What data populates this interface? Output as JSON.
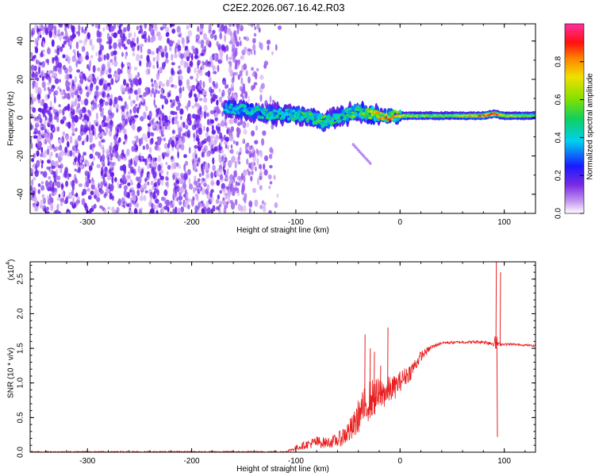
{
  "title": "C2E2.2026.067.16.42.R03",
  "colors": {
    "snr_line": "#e82020",
    "axis": "#000000",
    "noise_dark": "#6a1ee8",
    "noise_light": "#cfa8f4"
  },
  "chart_data": [
    {
      "type": "heatmap",
      "name": "spectrogram",
      "xlabel": "Height of straight line (km)",
      "ylabel": "Frequency (Hz)",
      "xlim": [
        -355,
        130
      ],
      "ylim": [
        -50,
        49
      ],
      "xticks": [
        -300,
        -200,
        -100,
        0,
        100
      ],
      "xtick_labels": [
        "-300",
        "-200",
        "-100",
        "0",
        "100"
      ],
      "yticks": [
        -40,
        -20,
        0,
        20,
        40
      ],
      "ytick_labels": [
        "-40",
        "-20",
        "0",
        "20",
        "40"
      ],
      "noise_region_x": [
        -355,
        -125
      ],
      "signal_band": {
        "x": [
          -168,
          -150,
          -130,
          -110,
          -95,
          -80,
          -70,
          -60,
          -50,
          -40,
          -30,
          -20,
          -10,
          0,
          20,
          50,
          80,
          90,
          100,
          130
        ],
        "center": [
          5,
          4,
          2,
          2,
          1,
          -1,
          -2,
          0,
          2,
          3,
          2,
          1,
          1,
          1,
          1,
          1,
          1,
          2,
          1,
          1
        ],
        "amplitude": [
          0.35,
          0.4,
          0.45,
          0.4,
          0.45,
          0.5,
          0.5,
          0.45,
          0.5,
          0.55,
          0.6,
          0.8,
          0.85,
          0.75,
          0.6,
          0.6,
          0.9,
          0.95,
          0.7,
          0.55
        ]
      },
      "colorbar": {
        "label": "Normalized spectral amplitude",
        "range": [
          0,
          1
        ],
        "ticks": [
          0.0,
          0.2,
          0.4,
          0.6,
          0.8
        ],
        "tick_labels": [
          "0.0",
          "0.2",
          "0.4",
          "0.6",
          "0.8"
        ]
      }
    },
    {
      "type": "line",
      "name": "snr",
      "xlabel": "Height of straight line (km)",
      "ylabel": "SNR (10 * v/v)",
      "scale_label": "(x10",
      "scale_exponent": "4",
      "scale_suffix": ")",
      "xlim": [
        -355,
        130
      ],
      "ylim": [
        0,
        2.75
      ],
      "xticks": [
        -300,
        -200,
        -100,
        0,
        100
      ],
      "xtick_labels": [
        "-300",
        "-200",
        "-100",
        "0",
        "100"
      ],
      "yticks": [
        0.0,
        0.5,
        1.0,
        1.5,
        2.0,
        2.5
      ],
      "ytick_labels": [
        "0.0",
        "0.5",
        "1.0",
        "1.5",
        "2.0",
        "2.5"
      ],
      "envelope": {
        "x": [
          -355,
          -110,
          -100,
          -90,
          -80,
          -70,
          -60,
          -50,
          -45,
          -40,
          -35,
          -30,
          -25,
          -20,
          -15,
          -10,
          -5,
          0,
          10,
          20,
          30,
          40,
          60,
          80,
          90,
          92,
          95,
          100,
          110,
          130
        ],
        "base": [
          0.0,
          0.0,
          0.04,
          0.08,
          0.1,
          0.1,
          0.12,
          0.2,
          0.25,
          0.4,
          0.5,
          0.6,
          0.65,
          0.7,
          0.75,
          0.8,
          0.85,
          0.95,
          1.1,
          1.35,
          1.5,
          1.57,
          1.58,
          1.58,
          1.55,
          1.5,
          1.55,
          1.55,
          1.55,
          1.53
        ],
        "spread": [
          0.02,
          0.02,
          0.08,
          0.12,
          0.18,
          0.15,
          0.2,
          0.35,
          0.4,
          0.5,
          0.55,
          0.6,
          0.55,
          0.5,
          0.45,
          0.4,
          0.35,
          0.3,
          0.25,
          0.15,
          0.06,
          0.04,
          0.04,
          0.05,
          0.08,
          0.3,
          0.05,
          0.04,
          0.03,
          0.03
        ]
      },
      "spikes": [
        {
          "x": -34,
          "y": 1.7
        },
        {
          "x": -29,
          "y": 1.5
        },
        {
          "x": -25,
          "y": 1.45
        },
        {
          "x": -12,
          "y": 1.8
        },
        {
          "x": -19,
          "y": 1.25
        },
        {
          "x": 92,
          "y": 2.75
        },
        {
          "x": 93,
          "y": 0.22
        },
        {
          "x": 96,
          "y": 2.6
        }
      ]
    }
  ]
}
